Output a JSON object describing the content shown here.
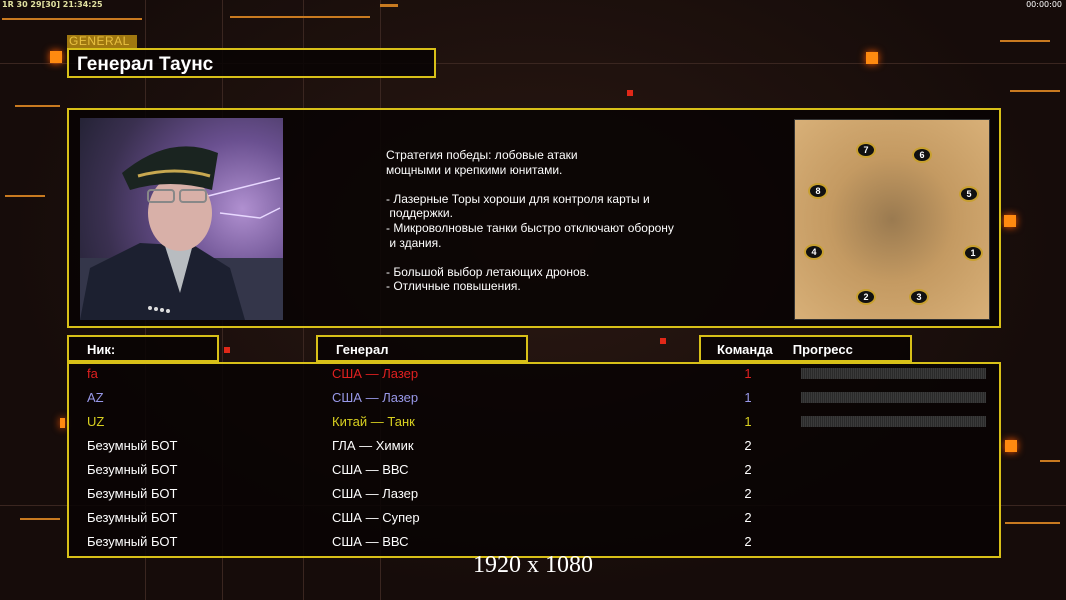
{
  "status_bar": {
    "left": "1R 30 29[30] 21:34:25",
    "right": "00:00:00"
  },
  "header": {
    "tag": "GENERAL",
    "title": "Генерал Таунс"
  },
  "general": {
    "portrait": "general-townes-portrait",
    "description": "Стратегия победы: лобовые атаки\nмощными и крепкими юнитами.\n\n- Лазерные Торы хороши для контроля карты и\n поддержки.\n- Микроволновые танки быстро отключают оборону\n и здания.\n\n- Большой выбор летающих дронов.\n- Отличные повышения."
  },
  "minimap": {
    "start_positions": [
      "1",
      "2",
      "3",
      "4",
      "5",
      "6",
      "7",
      "8"
    ]
  },
  "columns": {
    "nick": "Ник:",
    "general": "Генерал",
    "team": "Команда",
    "progress": "Прогресс"
  },
  "players": [
    {
      "nick": "fa",
      "general": "США — Лазер",
      "team": "1",
      "color": "#e02020",
      "progress": 0
    },
    {
      "nick": "AZ",
      "general": "США — Лазер",
      "team": "1",
      "color": "#9898e8",
      "progress": 0
    },
    {
      "nick": "UZ",
      "general": "Китай — Танк",
      "team": "1",
      "color": "#d8d020",
      "progress": 0
    },
    {
      "nick": "Безумный БОТ",
      "general": "ГЛА — Химик",
      "team": "2",
      "color": "#ffffff"
    },
    {
      "nick": "Безумный БОТ",
      "general": "США — ВВС",
      "team": "2",
      "color": "#ffffff"
    },
    {
      "nick": "Безумный БОТ",
      "general": "США — Лазер",
      "team": "2",
      "color": "#ffffff"
    },
    {
      "nick": "Безумный БОТ",
      "general": "США — Супер",
      "team": "2",
      "color": "#ffffff"
    },
    {
      "nick": "Безумный БОТ",
      "general": "США — ВВС",
      "team": "2",
      "color": "#ffffff"
    }
  ],
  "resolution": "1920 x 1080",
  "colors": {
    "frame": "#d8c018",
    "accent": "#ff8a10"
  }
}
